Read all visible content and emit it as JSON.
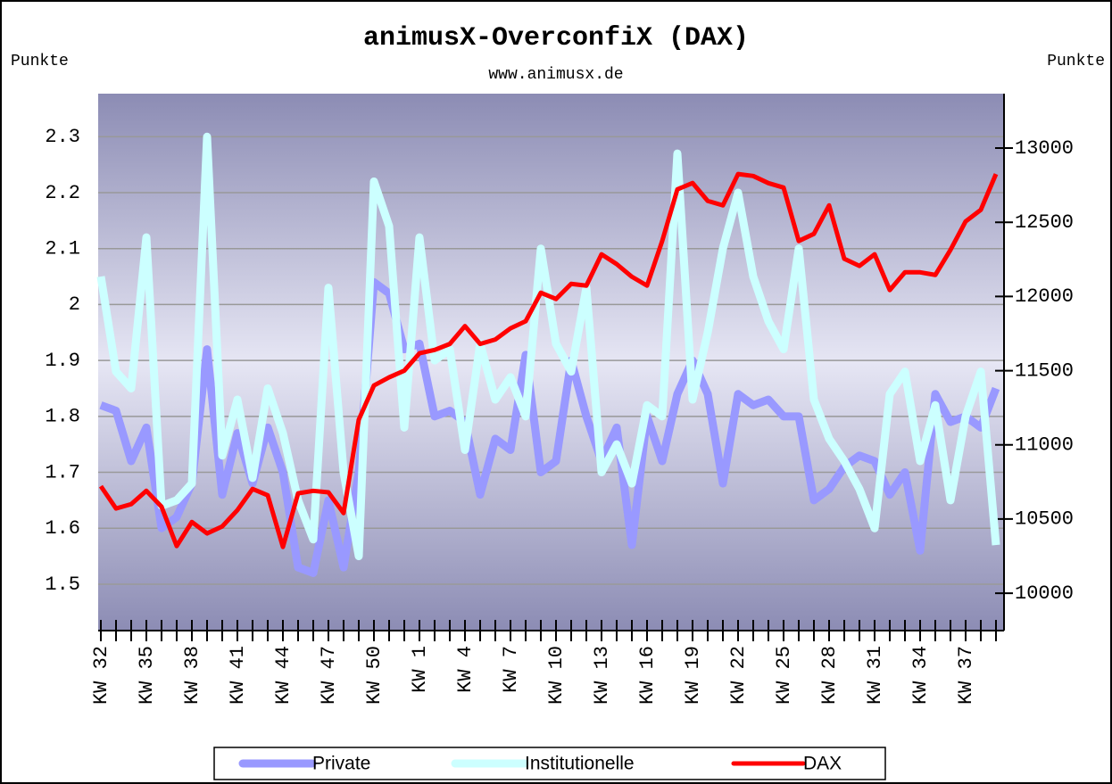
{
  "chart_data": {
    "type": "line",
    "title": "animusX-OverconfiX (DAX)",
    "subtitle": "www.animusx.de",
    "y_label": "Punkte",
    "y2_label": "Punkte",
    "categories": [
      "KW 32",
      null,
      null,
      "KW 35",
      null,
      null,
      "KW 38",
      null,
      null,
      "KW 41",
      null,
      null,
      "KW 44",
      null,
      null,
      "KW 47",
      null,
      null,
      "KW 50",
      null,
      null,
      "KW 1",
      null,
      null,
      "KW 4",
      null,
      null,
      "KW 7",
      null,
      null,
      "KW 10",
      null,
      null,
      "KW 13",
      null,
      null,
      "KW 16",
      null,
      null,
      "KW 19",
      null,
      null,
      "KW 22",
      null,
      null,
      "KW 25",
      null,
      null,
      "KW 28",
      null,
      null,
      "KW 31",
      null,
      null,
      "KW 34",
      null,
      null,
      "KW 37",
      null,
      null
    ],
    "series": [
      {
        "name": "Private",
        "color": "#9999ff",
        "values": [
          1.82,
          1.81,
          1.72,
          1.78,
          1.6,
          1.62,
          1.68,
          1.92,
          1.66,
          1.77,
          1.68,
          1.78,
          1.7,
          1.53,
          1.52,
          1.65,
          1.53,
          1.7,
          2.04,
          2.02,
          1.92,
          1.93,
          1.8,
          1.81,
          1.79,
          1.66,
          1.76,
          1.74,
          1.91,
          1.7,
          1.72,
          1.9,
          1.8,
          1.72,
          1.78,
          1.57,
          1.8,
          1.72,
          1.84,
          1.9,
          1.84,
          1.68,
          1.84,
          1.82,
          1.83,
          1.8,
          1.8,
          1.65,
          1.67,
          1.71,
          1.73,
          1.72,
          1.66,
          1.7,
          1.56,
          1.84,
          1.79,
          1.8,
          1.78,
          1.85
        ]
      },
      {
        "name": "Institutionelle",
        "color": "#ccffff",
        "values": [
          2.05,
          1.88,
          1.85,
          2.12,
          1.64,
          1.65,
          1.68,
          2.3,
          1.73,
          1.83,
          1.69,
          1.85,
          1.77,
          1.65,
          1.58,
          2.03,
          1.7,
          1.55,
          2.22,
          2.14,
          1.78,
          2.12,
          1.9,
          1.92,
          1.74,
          1.93,
          1.83,
          1.87,
          1.8,
          2.1,
          1.93,
          1.88,
          2.03,
          1.7,
          1.75,
          1.68,
          1.82,
          1.8,
          2.27,
          1.83,
          1.95,
          2.1,
          2.2,
          2.05,
          1.97,
          1.92,
          2.1,
          1.83,
          1.76,
          1.72,
          1.67,
          1.6,
          1.84,
          1.88,
          1.72,
          1.82,
          1.65,
          1.8,
          1.88,
          1.57
        ]
      },
      {
        "name": "DAX",
        "color": "#ff0000",
        "axis": "y2",
        "values": [
          10721,
          10571,
          10600,
          10690,
          10583,
          10318,
          10480,
          10403,
          10450,
          10560,
          10703,
          10660,
          10312,
          10673,
          10690,
          10680,
          10540,
          11170,
          11400,
          11455,
          11500,
          11617,
          11640,
          11680,
          11800,
          11680,
          11710,
          11785,
          11833,
          12025,
          11983,
          12085,
          12073,
          12284,
          12218,
          12133,
          12073,
          12374,
          12722,
          12765,
          12644,
          12614,
          12825,
          12812,
          12764,
          12734,
          12374,
          12422,
          12614,
          12254,
          12206,
          12284,
          12043,
          12163,
          12163,
          12145,
          12314,
          12506,
          12584,
          12825
        ]
      }
    ],
    "ylim": [
      1.417,
      2.377
    ],
    "yticks": [
      1.5,
      1.6,
      1.7,
      1.8,
      1.9,
      2,
      2.1,
      2.2,
      2.3
    ],
    "y2lim": [
      9748,
      13367
    ],
    "y2ticks": [
      10000,
      10500,
      11000,
      11500,
      12000,
      12500,
      13000
    ],
    "grid": true
  }
}
